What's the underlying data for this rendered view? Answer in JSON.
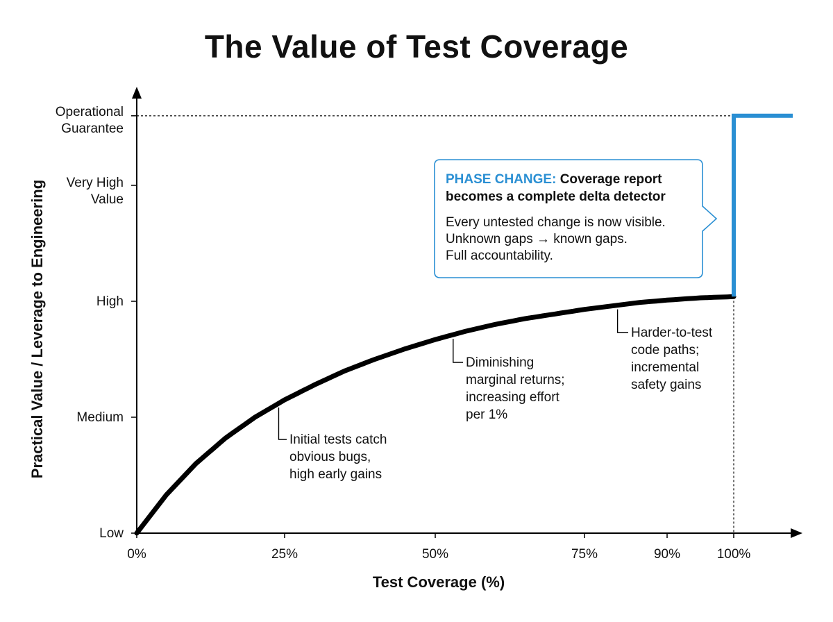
{
  "colors": {
    "curve": "#000000",
    "step": "#2a8fd3",
    "callout_border": "#2a8fd3"
  },
  "chart_data": {
    "type": "line",
    "title": "The Value of Test Coverage",
    "xlabel": "Test Coverage (%)",
    "ylabel": "Practical Value / Leverage to Engineering",
    "x_ticks": [
      {
        "value": 0,
        "label": "0%"
      },
      {
        "value": 25,
        "label": "25%"
      },
      {
        "value": 50,
        "label": "50%"
      },
      {
        "value": 75,
        "label": "75%"
      },
      {
        "value": 90,
        "label": "90%"
      },
      {
        "value": 100,
        "label": "100%"
      }
    ],
    "y_ticks": [
      {
        "value": 0,
        "label": "Low"
      },
      {
        "value": 1,
        "label": "Medium"
      },
      {
        "value": 2,
        "label": "High"
      },
      {
        "value": 3,
        "label": "Very High Value"
      },
      {
        "value": 3.6,
        "label": "Operational Guarantee"
      }
    ],
    "xlim": [
      0,
      110
    ],
    "ylim": [
      0,
      3.85
    ],
    "series": [
      {
        "name": "Diminishing returns curve",
        "color": "#000000",
        "x": [
          0,
          5,
          10,
          15,
          20,
          25,
          30,
          35,
          40,
          45,
          50,
          55,
          60,
          65,
          70,
          75,
          80,
          85,
          90,
          95,
          100
        ],
        "y": [
          0,
          0.33,
          0.6,
          0.82,
          1.0,
          1.15,
          1.28,
          1.4,
          1.5,
          1.59,
          1.67,
          1.74,
          1.8,
          1.85,
          1.89,
          1.93,
          1.96,
          1.99,
          2.01,
          2.03,
          2.04
        ]
      },
      {
        "name": "Phase change step",
        "color": "#2a8fd3",
        "x": [
          100,
          100,
          110
        ],
        "y": [
          2.04,
          3.6,
          3.6
        ]
      }
    ],
    "annotations": [
      {
        "text": [
          "Initial tests catch",
          "obvious bugs,",
          "high early gains"
        ],
        "x": 24
      },
      {
        "text": [
          "Diminishing",
          "marginal returns;",
          "increasing effort",
          "per 1%"
        ],
        "x": 53
      },
      {
        "text": [
          "Harder-to-test",
          "code paths;",
          "incremental",
          "safety gains"
        ],
        "x": 81
      }
    ],
    "callout": {
      "highlight": "PHASE CHANGE:",
      "title_rest": "Coverage report",
      "title_line2": "becomes a complete delta detector",
      "lines": [
        "Every untested change is now visible.",
        "Unknown gaps → known gaps.",
        "Full accountability."
      ]
    },
    "reference_lines": [
      {
        "type": "horizontal",
        "y": 3.6,
        "style": "dotted"
      },
      {
        "type": "vertical",
        "x": 100,
        "style": "dotted"
      }
    ]
  }
}
